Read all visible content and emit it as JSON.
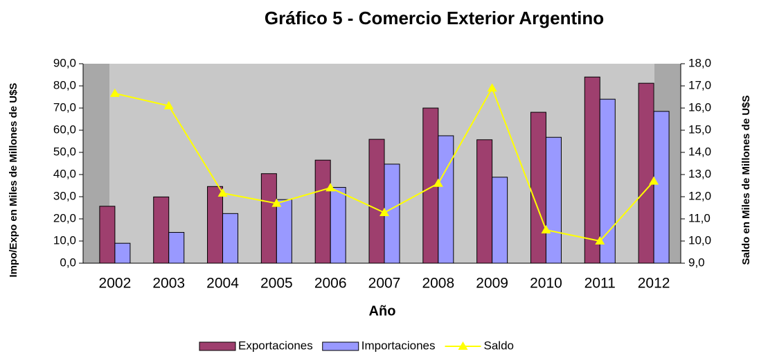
{
  "chart_data": {
    "type": "bar",
    "title": "Gráfico 5 - Comercio Exterior Argentino",
    "x_label": "Año",
    "y_label": "Impo/Expo en Miles de Millones de U$S",
    "y2_label": "Saldo en Miles de Millones de U$S",
    "categories": [
      "2002",
      "2003",
      "2004",
      "2005",
      "2006",
      "2007",
      "2008",
      "2009",
      "2010",
      "2011",
      "2012"
    ],
    "series": [
      {
        "name": "Exportaciones",
        "color": "#9e3f6e",
        "type": "bar",
        "values": [
          25.7,
          29.9,
          34.6,
          40.4,
          46.5,
          55.9,
          70.0,
          55.7,
          68.1,
          84.0,
          81.2
        ]
      },
      {
        "name": "Importaciones",
        "color": "#9999ff",
        "type": "bar",
        "values": [
          9.0,
          13.9,
          22.4,
          28.7,
          34.2,
          44.7,
          57.5,
          38.8,
          56.8,
          74.0,
          68.5
        ]
      },
      {
        "name": "Saldo",
        "color": "#ffff00",
        "type": "line",
        "axis": "y2",
        "values": [
          16.66,
          16.1,
          12.16,
          11.7,
          12.4,
          11.28,
          12.6,
          16.9,
          10.5,
          10.0,
          12.7
        ]
      }
    ],
    "ylim": [
      0,
      90
    ],
    "yticks": [
      {
        "value": 0,
        "label": "0,0"
      },
      {
        "value": 10,
        "label": "10,0"
      },
      {
        "value": 20,
        "label": "20,0"
      },
      {
        "value": 30,
        "label": "30,0"
      },
      {
        "value": 40,
        "label": "40,0"
      },
      {
        "value": 50,
        "label": "50,0"
      },
      {
        "value": 60,
        "label": "60,0"
      },
      {
        "value": 70,
        "label": "70,0"
      },
      {
        "value": 80,
        "label": "80,0"
      },
      {
        "value": 90,
        "label": "90,0"
      }
    ],
    "y2lim": [
      9,
      18
    ],
    "y2ticks": [
      {
        "value": 9,
        "label": "9,0"
      },
      {
        "value": 10,
        "label": "10,0"
      },
      {
        "value": 11,
        "label": "11,0"
      },
      {
        "value": 12,
        "label": "12,0"
      },
      {
        "value": 13,
        "label": "13,0"
      },
      {
        "value": 14,
        "label": "14,0"
      },
      {
        "value": 15,
        "label": "15,0"
      },
      {
        "value": 16,
        "label": "16,0"
      },
      {
        "value": 17,
        "label": "17,0"
      },
      {
        "value": 18,
        "label": "18,0"
      }
    ],
    "legend": "bottom"
  }
}
